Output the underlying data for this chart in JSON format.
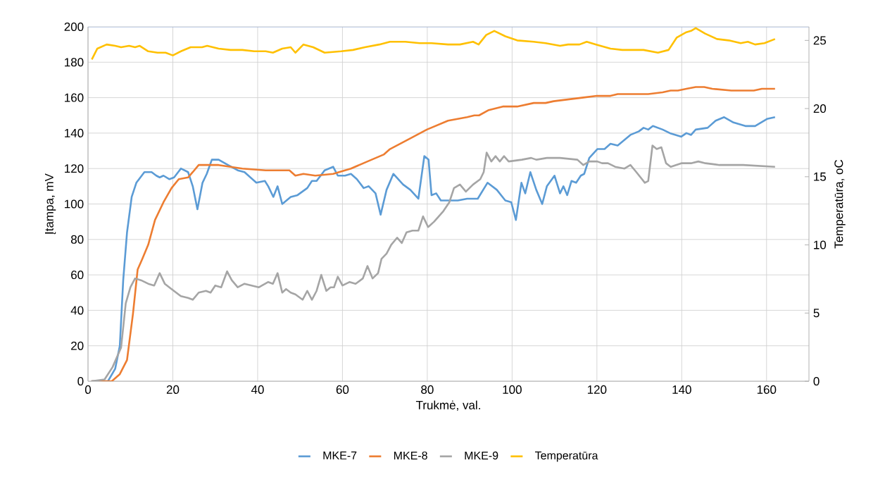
{
  "chart_data": {
    "type": "line",
    "xlabel": "Trukmė, val.",
    "ylabel": "Įtampa, mV",
    "y2label": "Temperatūra, oC",
    "xlim": [
      0,
      170
    ],
    "xticks": [
      0,
      20,
      40,
      60,
      80,
      100,
      120,
      140,
      160
    ],
    "ylim": [
      0,
      200
    ],
    "yticks": [
      0,
      20,
      40,
      60,
      80,
      100,
      120,
      140,
      160,
      180,
      200
    ],
    "y2lim": [
      0,
      26
    ],
    "y2ticks": [
      0,
      5,
      10,
      15,
      20,
      25
    ],
    "grid": true,
    "legend": "bottom",
    "marker": "none",
    "line_style": "solid",
    "series": [
      {
        "name": "MKE-7",
        "color": "#5b9bd5",
        "x": [
          0.8,
          4.7,
          6.4,
          7.5,
          8.3,
          9.2,
          10.3,
          11.4,
          13.3,
          15,
          16.1,
          16.9,
          17.8,
          19.2,
          20.3,
          21.9,
          23.6,
          24.7,
          25.8,
          27,
          28,
          29.2,
          30.8,
          33,
          35.3,
          36.9,
          39.7,
          41.7,
          42.5,
          43.7,
          44.7,
          45.8,
          47.8,
          49.4,
          51.7,
          52.8,
          53.9,
          55.8,
          57.8,
          58.9,
          60.6,
          62,
          63.4,
          65,
          66.2,
          67.8,
          69,
          70.4,
          72,
          74.3,
          76,
          77.9,
          79.3,
          80.3,
          81,
          82.1,
          83.2,
          87.2,
          89.4,
          91.9,
          94.2,
          96.4,
          98.4,
          99.8,
          100.9,
          102.2,
          103.1,
          104.3,
          105.7,
          107.1,
          108.2,
          110,
          111.3,
          112.1,
          113,
          114,
          115.1,
          116.2,
          117,
          118.2,
          120.1,
          121.8,
          123.2,
          124.9,
          127.9,
          129.9,
          131,
          132.1,
          133.2,
          135.5,
          137.2,
          139.9,
          141.1,
          142.2,
          143.3,
          146.1,
          148,
          150,
          152.2,
          155,
          157.3,
          160.1,
          162
        ],
        "values": [
          0,
          0,
          7,
          20,
          57,
          84,
          104,
          112,
          118,
          118,
          116,
          115,
          116,
          114,
          115,
          120,
          118,
          110,
          97,
          112,
          117,
          125,
          125,
          122,
          119,
          118,
          112,
          113,
          110,
          104,
          110,
          100,
          104,
          105,
          109,
          113,
          113,
          119,
          121,
          116,
          116,
          117,
          114,
          109,
          110,
          106,
          94,
          108,
          117,
          111,
          108,
          103,
          127,
          125,
          105,
          106,
          102,
          102,
          103,
          103,
          112,
          108,
          102,
          101,
          91,
          112,
          106,
          118,
          108,
          100,
          110,
          116,
          106,
          110,
          105,
          113,
          112,
          116,
          117,
          126,
          131,
          131,
          134,
          133,
          139,
          141,
          143,
          142,
          144,
          142,
          140,
          138,
          140,
          139,
          142,
          143,
          147,
          149,
          146,
          144,
          144,
          148,
          149
        ]
      },
      {
        "name": "MKE-8",
        "color": "#ed7d31",
        "x": [
          0.8,
          5.6,
          7.5,
          9.2,
          10.6,
          11.7,
          12.8,
          14.2,
          15.8,
          17.8,
          19.7,
          21.4,
          23.6,
          24.7,
          26.1,
          30.8,
          36.4,
          41.9,
          47.5,
          48.9,
          50.8,
          53.6,
          57.8,
          62,
          65.9,
          69.8,
          71.2,
          76,
          79.9,
          84.9,
          89.4,
          91.1,
          92.2,
          94.5,
          97.8,
          101.2,
          105.1,
          107.9,
          109.8,
          116.5,
          120,
          123.2,
          124.9,
          132.1,
          135.5,
          137.4,
          139.1,
          141.1,
          143.3,
          145.3,
          147.2,
          151.7,
          154.5,
          157,
          158.9,
          162
        ],
        "values": [
          0,
          0,
          4,
          12,
          38,
          63,
          69,
          77,
          91,
          101,
          109,
          114,
          115,
          118,
          122,
          122,
          120,
          119,
          119,
          116,
          117,
          116,
          117,
          120,
          124,
          128,
          131,
          137,
          142,
          147,
          149,
          150,
          150,
          153,
          155,
          155,
          157,
          157,
          158,
          160,
          161,
          161,
          162,
          162,
          163,
          164,
          164,
          165,
          166,
          166,
          165,
          164,
          164,
          164,
          165,
          165
        ]
      },
      {
        "name": "MKE-9",
        "color": "#a5a5a5",
        "x": [
          0.8,
          3.9,
          5.8,
          7.8,
          8.9,
          10,
          11.1,
          12.5,
          14.2,
          15.6,
          16.9,
          18.1,
          19.7,
          21.9,
          23.6,
          24.7,
          26.1,
          27.8,
          28.9,
          30,
          31.4,
          32.8,
          33.9,
          35.3,
          36.9,
          40.3,
          42.5,
          43.6,
          44.7,
          45.8,
          46.7,
          47.8,
          48.9,
          50.6,
          51.7,
          52.8,
          53.9,
          55,
          56.2,
          57.2,
          58,
          58.9,
          60,
          61.7,
          63.1,
          64.8,
          65.9,
          67.1,
          68.4,
          69.2,
          70.4,
          71.5,
          72.9,
          74,
          75.1,
          76.5,
          77.9,
          79,
          80.2,
          81.6,
          83.8,
          85.2,
          86.3,
          87.7,
          89.1,
          90.8,
          92.5,
          93.3,
          94,
          95.1,
          96.1,
          97.1,
          98.1,
          99.2,
          102.3,
          104.5,
          105.7,
          108.2,
          111.3,
          115.4,
          116.8,
          118.2,
          120.1,
          121.2,
          122.6,
          124.3,
          126.5,
          127.9,
          129.3,
          131.3,
          132.1,
          133.1,
          134.1,
          135.2,
          136.3,
          137.4,
          139.9,
          142.2,
          143.9,
          145.6,
          148.9,
          154.5,
          162
        ],
        "values": [
          0,
          1,
          8,
          19,
          44,
          53,
          58,
          57,
          55,
          54,
          61,
          55,
          52,
          48,
          47,
          46,
          50,
          51,
          50,
          54,
          53,
          62,
          57,
          53,
          55,
          53,
          56,
          55,
          61,
          50,
          52,
          50,
          49,
          46,
          51,
          46,
          51,
          60,
          51,
          53,
          53,
          59,
          54,
          56,
          55,
          58,
          65,
          58,
          61,
          69,
          72,
          77,
          81,
          78,
          84,
          85,
          85,
          93,
          87,
          90,
          96,
          101,
          109,
          111,
          107,
          111,
          114,
          118,
          129,
          124,
          127,
          124,
          127,
          124,
          125,
          126,
          125,
          126,
          126,
          125,
          122,
          124,
          124,
          123,
          123,
          121,
          120,
          122,
          118,
          112,
          113,
          133,
          131,
          132,
          123,
          121,
          123,
          123,
          124,
          123,
          122,
          122,
          121
        ]
      },
      {
        "name": "Temperatūra",
        "color": "#ffc000",
        "axis": "y2",
        "x": [
          0.9,
          2.2,
          4.4,
          6.4,
          7.8,
          9.7,
          11.1,
          12.2,
          14.2,
          16.4,
          18.3,
          20,
          21.9,
          24.2,
          26.9,
          28.1,
          30.8,
          33.6,
          36.4,
          39.2,
          41.9,
          43.6,
          45.8,
          47.8,
          48.9,
          50.8,
          53.1,
          55.8,
          59.7,
          62.5,
          65.3,
          68.7,
          71.2,
          74.8,
          78.2,
          81,
          84.9,
          87.7,
          90.8,
          92.1,
          93.9,
          95.8,
          98.4,
          101.2,
          105.1,
          107.9,
          111.3,
          113.2,
          115.9,
          117.6,
          119.8,
          123.2,
          126,
          128.2,
          131,
          134.4,
          136.9,
          138.8,
          141.1,
          142.2,
          143.3,
          145.5,
          148.3,
          151.1,
          153.9,
          155.6,
          157.3,
          159.5,
          162
        ],
        "values": [
          23.6,
          24.4,
          24.7,
          24.6,
          24.5,
          24.6,
          24.5,
          24.6,
          24.2,
          24.1,
          24.1,
          23.9,
          24.2,
          24.5,
          24.5,
          24.6,
          24.4,
          24.3,
          24.3,
          24.2,
          24.2,
          24.1,
          24.4,
          24.5,
          24.1,
          24.7,
          24.5,
          24.1,
          24.2,
          24.3,
          24.5,
          24.7,
          24.9,
          24.9,
          24.8,
          24.8,
          24.7,
          24.7,
          24.9,
          24.7,
          25.4,
          25.7,
          25.3,
          25,
          24.9,
          24.8,
          24.6,
          24.7,
          24.7,
          24.9,
          24.7,
          24.4,
          24.3,
          24.3,
          24.3,
          24.1,
          24.3,
          25.2,
          25.6,
          25.7,
          25.9,
          25.5,
          25.1,
          25,
          24.8,
          24.9,
          24.7,
          24.8,
          25.1
        ]
      }
    ]
  }
}
